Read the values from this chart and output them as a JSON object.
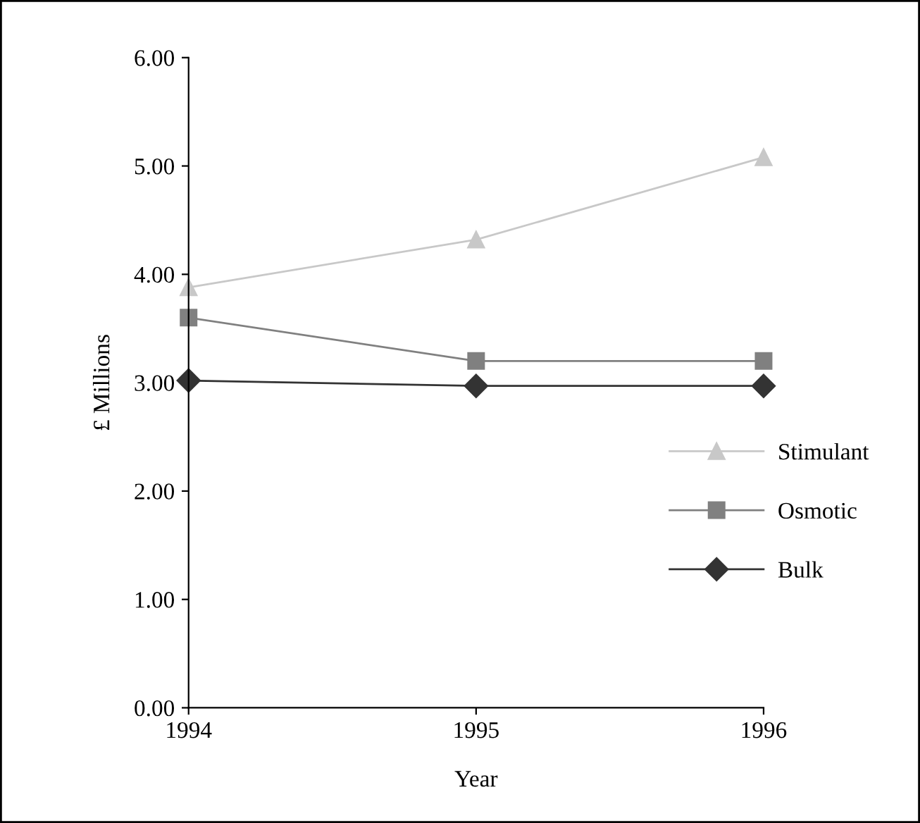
{
  "chart_data": {
    "type": "line",
    "xlabel": "Year",
    "ylabel": "£ Millions",
    "x": [
      1994,
      1995,
      1996
    ],
    "series": [
      {
        "name": "Stimulant",
        "color": "#c8c8c8",
        "marker": "triangle",
        "values": [
          3.88,
          4.32,
          5.08
        ]
      },
      {
        "name": "Osmotic",
        "color": "#808080",
        "marker": "square",
        "values": [
          3.6,
          3.2,
          3.2
        ]
      },
      {
        "name": "Bulk",
        "color": "#333333",
        "marker": "diamond",
        "values": [
          3.02,
          2.97,
          2.97
        ]
      }
    ],
    "xlim": [
      1994,
      1996
    ],
    "xticks": [
      1994,
      1995,
      1996
    ],
    "ylim": [
      0,
      6
    ],
    "yticks": [
      {
        "value": 0,
        "label": "0.00"
      },
      {
        "value": 1,
        "label": "1.00"
      },
      {
        "value": 2,
        "label": "2.00"
      },
      {
        "value": 3,
        "label": "3.00"
      },
      {
        "value": 4,
        "label": "4.00"
      },
      {
        "value": 5,
        "label": "5.00"
      },
      {
        "value": 6,
        "label": "6.00"
      }
    ],
    "grid": false,
    "legend": "right",
    "line_style": "solid"
  }
}
